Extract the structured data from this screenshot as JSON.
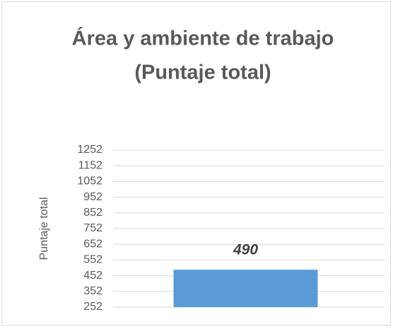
{
  "chart_data": {
    "type": "bar",
    "title": [
      "Área y ambiente de trabajo",
      "(Puntaje total)"
    ],
    "y_label": "Puntaje total",
    "categories": [
      null
    ],
    "values": [
      490
    ],
    "color": "#5b9bd5",
    "ylim": [
      252,
      1252
    ],
    "yticks": [
      252,
      352,
      452,
      552,
      652,
      752,
      852,
      952,
      1052,
      1152,
      1252
    ],
    "grid": true
  }
}
